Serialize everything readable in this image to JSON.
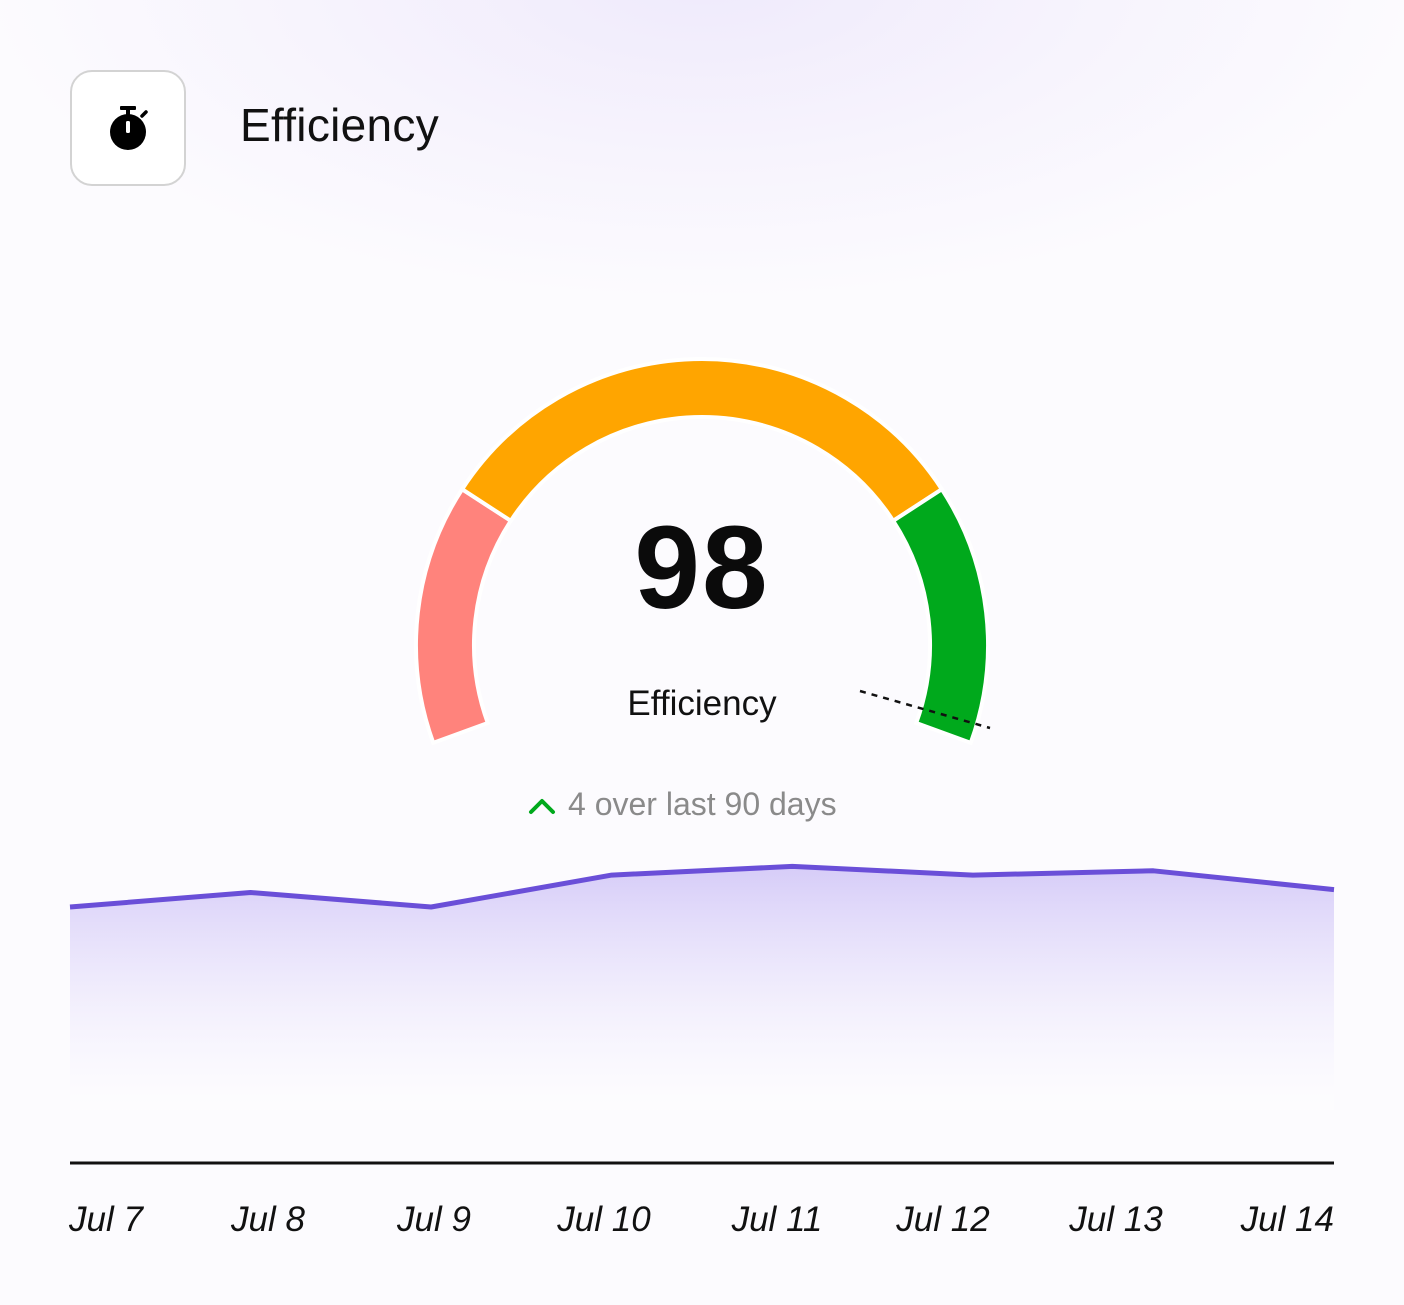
{
  "header": {
    "title": "Efficiency",
    "icon": "stopwatch-icon"
  },
  "gauge": {
    "value": "98",
    "label": "Efficiency",
    "segment_colors": [
      "#ff837c",
      "#ffa500",
      "#00a91c"
    ],
    "change_text": "4 over last 90 days",
    "change_icon": "chevron-up-icon",
    "change_color": "#00a91c"
  },
  "chart_data": {
    "type": "area",
    "categories": [
      "Jul 7",
      "Jul 8",
      "Jul 9",
      "Jul 10",
      "Jul 11",
      "Jul 12",
      "Jul 13",
      "Jul 14"
    ],
    "series": [
      {
        "values": [
          94,
          95,
          94,
          96.2,
          96.8,
          96.2,
          96.5,
          95.2
        ]
      }
    ],
    "ylim": [
      80,
      100
    ],
    "line_color": "#6a4fd8",
    "fill_color": "#d6ccf8",
    "grid": false
  }
}
